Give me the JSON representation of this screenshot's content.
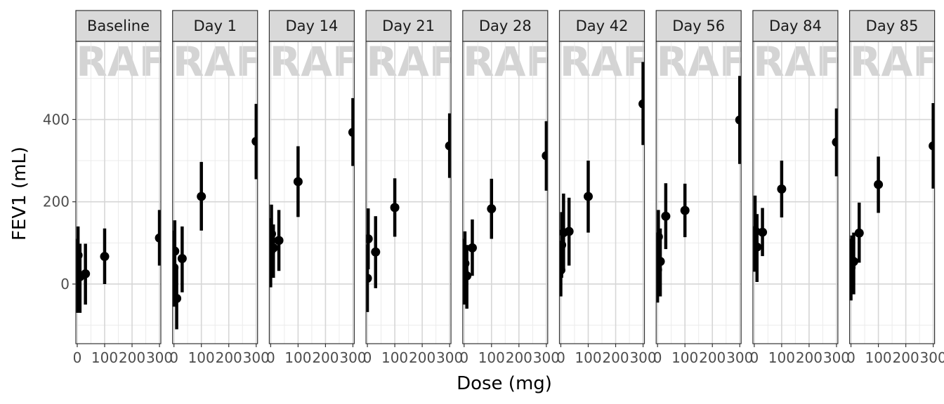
{
  "chart_data": {
    "type": "scatter",
    "facet_by": "Visit",
    "xlabel": "Dose (mg)",
    "ylabel": "FEV1 (mL)",
    "xlim": [
      -5,
      305
    ],
    "ylim": [
      -145,
      590
    ],
    "x_ticks": [
      0,
      100,
      200,
      300
    ],
    "y_ticks": [
      0,
      200,
      400
    ],
    "grid": true,
    "watermark": "DRAFT",
    "panels": [
      {
        "label": "Baseline",
        "points": [
          {
            "x": 0,
            "y": 20,
            "lo": -70,
            "hi": 110
          },
          {
            "x": 3,
            "y": 70,
            "lo": 0,
            "hi": 140
          },
          {
            "x": 10,
            "y": 18,
            "lo": -70,
            "hi": 98
          },
          {
            "x": 30,
            "y": 25,
            "lo": -50,
            "hi": 98
          },
          {
            "x": 100,
            "y": 67,
            "lo": 0,
            "hi": 135
          },
          {
            "x": 300,
            "y": 112,
            "lo": 45,
            "hi": 180
          }
        ]
      },
      {
        "label": "Day 1",
        "points": [
          {
            "x": 0,
            "y": 40,
            "lo": -55,
            "hi": 130
          },
          {
            "x": 3,
            "y": 80,
            "lo": 5,
            "hi": 155
          },
          {
            "x": 10,
            "y": -35,
            "lo": -110,
            "hi": 40
          },
          {
            "x": 30,
            "y": 62,
            "lo": -20,
            "hi": 140
          },
          {
            "x": 100,
            "y": 213,
            "lo": 130,
            "hi": 297
          },
          {
            "x": 300,
            "y": 347,
            "lo": 255,
            "hi": 438
          }
        ]
      },
      {
        "label": "Day 14",
        "points": [
          {
            "x": 0,
            "y": 78,
            "lo": -8,
            "hi": 160
          },
          {
            "x": 3,
            "y": 122,
            "lo": 50,
            "hi": 193
          },
          {
            "x": 10,
            "y": 88,
            "lo": 15,
            "hi": 145
          },
          {
            "x": 30,
            "y": 106,
            "lo": 32,
            "hi": 180
          },
          {
            "x": 100,
            "y": 249,
            "lo": 163,
            "hi": 335
          },
          {
            "x": 300,
            "y": 369,
            "lo": 287,
            "hi": 452
          }
        ]
      },
      {
        "label": "Day 21",
        "points": [
          {
            "x": 0,
            "y": 14,
            "lo": -68,
            "hi": 96
          },
          {
            "x": 3,
            "y": 110,
            "lo": 36,
            "hi": 184
          },
          {
            "x": 30,
            "y": 78,
            "lo": -10,
            "hi": 165
          },
          {
            "x": 100,
            "y": 186,
            "lo": 115,
            "hi": 257
          },
          {
            "x": 300,
            "y": 336,
            "lo": 258,
            "hi": 415
          }
        ]
      },
      {
        "label": "Day 28",
        "points": [
          {
            "x": 0,
            "y": 30,
            "lo": -50,
            "hi": 110
          },
          {
            "x": 3,
            "y": 50,
            "lo": -30,
            "hi": 128
          },
          {
            "x": 10,
            "y": 20,
            "lo": -60,
            "hi": 95
          },
          {
            "x": 30,
            "y": 88,
            "lo": 20,
            "hi": 157
          },
          {
            "x": 100,
            "y": 183,
            "lo": 110,
            "hi": 256
          },
          {
            "x": 300,
            "y": 312,
            "lo": 227,
            "hi": 396
          }
        ]
      },
      {
        "label": "Day 42",
        "points": [
          {
            "x": 0,
            "y": 34,
            "lo": -30,
            "hi": 98
          },
          {
            "x": 3,
            "y": 95,
            "lo": 15,
            "hi": 175
          },
          {
            "x": 10,
            "y": 125,
            "lo": 30,
            "hi": 220
          },
          {
            "x": 30,
            "y": 128,
            "lo": 45,
            "hi": 210
          },
          {
            "x": 100,
            "y": 213,
            "lo": 125,
            "hi": 300
          },
          {
            "x": 300,
            "y": 438,
            "lo": 338,
            "hi": 540
          }
        ]
      },
      {
        "label": "Day 56",
        "points": [
          {
            "x": 0,
            "y": 35,
            "lo": -45,
            "hi": 115
          },
          {
            "x": 3,
            "y": 115,
            "lo": 50,
            "hi": 180
          },
          {
            "x": 10,
            "y": 55,
            "lo": -30,
            "hi": 135
          },
          {
            "x": 30,
            "y": 165,
            "lo": 85,
            "hi": 245
          },
          {
            "x": 100,
            "y": 179,
            "lo": 114,
            "hi": 244
          },
          {
            "x": 300,
            "y": 399,
            "lo": 292,
            "hi": 506
          }
        ]
      },
      {
        "label": "Day 84",
        "points": [
          {
            "x": 0,
            "y": 85,
            "lo": 30,
            "hi": 140
          },
          {
            "x": 3,
            "y": 130,
            "lo": 45,
            "hi": 215
          },
          {
            "x": 10,
            "y": 90,
            "lo": 5,
            "hi": 170
          },
          {
            "x": 30,
            "y": 126,
            "lo": 68,
            "hi": 185
          },
          {
            "x": 100,
            "y": 231,
            "lo": 162,
            "hi": 300
          },
          {
            "x": 300,
            "y": 345,
            "lo": 262,
            "hi": 427
          }
        ]
      },
      {
        "label": "Day 85",
        "points": [
          {
            "x": 0,
            "y": 40,
            "lo": -40,
            "hi": 110
          },
          {
            "x": 3,
            "y": 50,
            "lo": -20,
            "hi": 118
          },
          {
            "x": 10,
            "y": 55,
            "lo": -25,
            "hi": 125
          },
          {
            "x": 30,
            "y": 124,
            "lo": 52,
            "hi": 198
          },
          {
            "x": 100,
            "y": 242,
            "lo": 173,
            "hi": 310
          },
          {
            "x": 300,
            "y": 336,
            "lo": 232,
            "hi": 440
          }
        ]
      }
    ]
  }
}
